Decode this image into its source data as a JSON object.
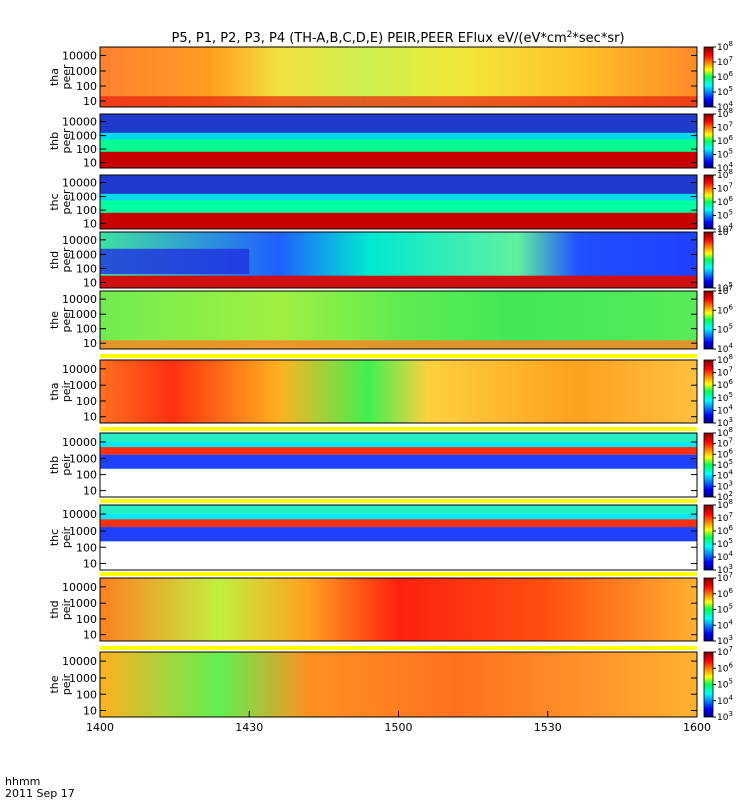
{
  "chart_data": {
    "type": "heatmap",
    "title_text": "P5, P1, P2, P3, P4 (TH-A,B,C,D,E) PEIR,PEER EFlux eV/(eV*cm",
    "title_sup": "2",
    "title_tail": "*sec*sr)",
    "x_label_top": "hhmm",
    "x_label_bottom": "2011 Sep 17",
    "x_ticks": [
      "1400",
      "1430",
      "1500",
      "1530",
      "1600"
    ],
    "x_range": [
      "1400",
      "1600"
    ],
    "y_scale": "log",
    "y_ticks": [
      "10",
      "100",
      "1000",
      "10000"
    ],
    "colorbar_scale": "log",
    "panels": [
      {
        "probe": "tha",
        "species": "peer",
        "colorbar": [
          4,
          5,
          6,
          7,
          8
        ]
      },
      {
        "probe": "thb",
        "species": "peer",
        "colorbar": [
          4,
          5,
          6,
          7,
          8
        ]
      },
      {
        "probe": "thc",
        "species": "peer",
        "colorbar": [
          4,
          5,
          6,
          7,
          8
        ]
      },
      {
        "probe": "thd",
        "species": "peer",
        "colorbar": [
          5,
          7
        ]
      },
      {
        "probe": "the",
        "species": "peer",
        "colorbar": [
          4,
          5,
          6,
          7
        ]
      },
      {
        "probe": "tha",
        "species": "peir",
        "colorbar": [
          3,
          4,
          5,
          6,
          7,
          8
        ]
      },
      {
        "probe": "thb",
        "species": "peir",
        "colorbar": [
          2,
          3,
          4,
          5,
          6,
          7,
          8
        ]
      },
      {
        "probe": "thc",
        "species": "peir",
        "colorbar": [
          3,
          4,
          5,
          6,
          7,
          8
        ]
      },
      {
        "probe": "thd",
        "species": "peir",
        "colorbar": [
          3,
          4,
          5,
          6,
          7
        ]
      },
      {
        "probe": "the",
        "species": "peir",
        "colorbar": [
          3,
          4,
          5,
          6,
          7
        ]
      }
    ]
  }
}
